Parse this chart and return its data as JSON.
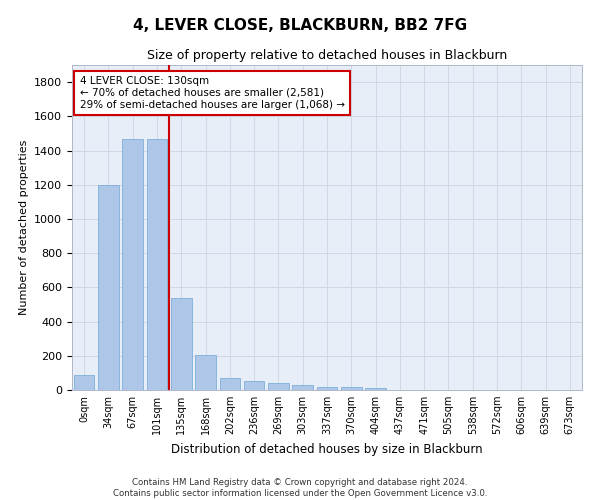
{
  "title": "4, LEVER CLOSE, BLACKBURN, BB2 7FG",
  "subtitle": "Size of property relative to detached houses in Blackburn",
  "xlabel": "Distribution of detached houses by size in Blackburn",
  "ylabel": "Number of detached properties",
  "footer_line1": "Contains HM Land Registry data © Crown copyright and database right 2024.",
  "footer_line2": "Contains public sector information licensed under the Open Government Licence v3.0.",
  "bar_labels": [
    "0sqm",
    "34sqm",
    "67sqm",
    "101sqm",
    "135sqm",
    "168sqm",
    "202sqm",
    "236sqm",
    "269sqm",
    "303sqm",
    "337sqm",
    "370sqm",
    "404sqm",
    "437sqm",
    "471sqm",
    "505sqm",
    "538sqm",
    "572sqm",
    "606sqm",
    "639sqm",
    "673sqm"
  ],
  "bar_values": [
    90,
    1200,
    1465,
    1470,
    535,
    205,
    70,
    50,
    42,
    27,
    20,
    15,
    12,
    0,
    0,
    0,
    0,
    0,
    0,
    0,
    0
  ],
  "bar_color": "#aec6e8",
  "bar_edgecolor": "#6fa8d4",
  "property_line_label": "4 LEVER CLOSE: 130sqm",
  "annotation_line1": "← 70% of detached houses are smaller (2,581)",
  "annotation_line2": "29% of semi-detached houses are larger (1,068) →",
  "annotation_box_color": "#ffffff",
  "annotation_box_edgecolor": "#cc0000",
  "line_x_index": 3.5,
  "ylim": [
    0,
    1900
  ],
  "yticks": [
    0,
    200,
    400,
    600,
    800,
    1000,
    1200,
    1400,
    1600,
    1800
  ],
  "grid_color": "#d0d8e8",
  "bg_color": "#e8eef8",
  "title_fontsize": 11,
  "subtitle_fontsize": 9
}
